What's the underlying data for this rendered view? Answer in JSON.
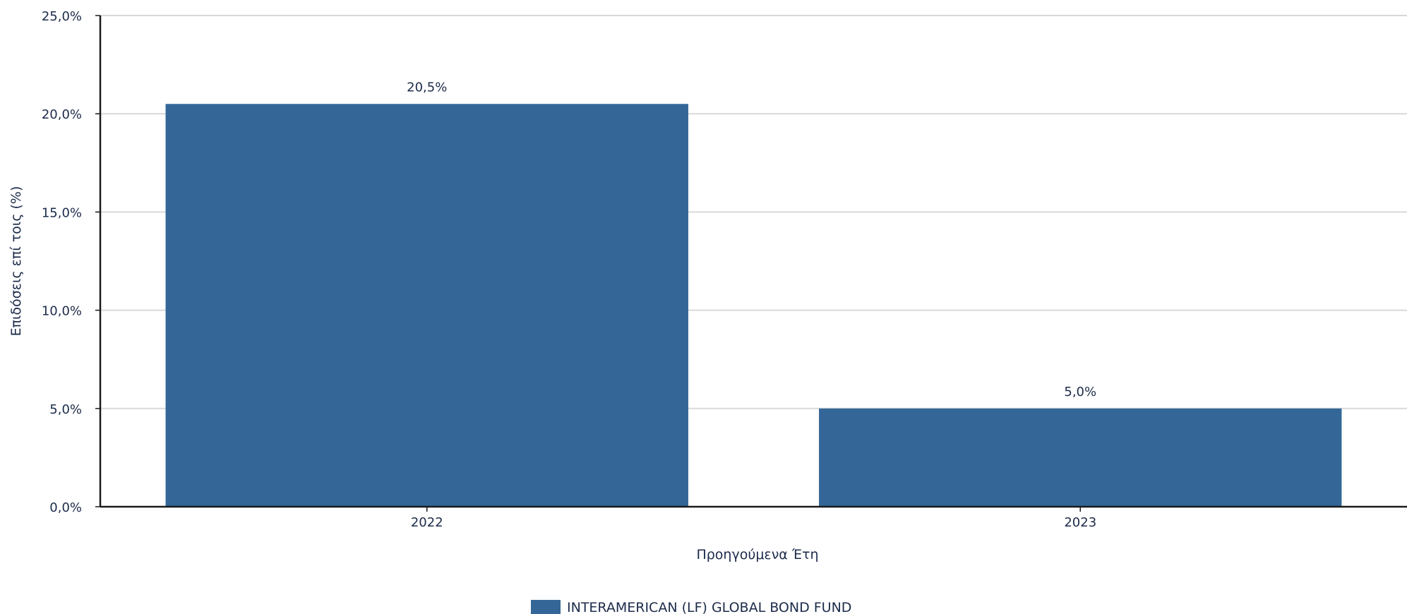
{
  "chart_data": {
    "type": "bar",
    "categories": [
      "2022",
      "2023"
    ],
    "series": [
      {
        "name": "INTERAMERICAN (LF) GLOBAL BOND FUND",
        "values": [
          20.5,
          5.0
        ],
        "color": "#346798"
      }
    ],
    "data_labels": [
      "20,5%",
      "5,0%"
    ],
    "xlabel": "Προηγούμενα Έτη",
    "ylabel": "Επιδόσεις επί τοις (%)",
    "ylim": [
      0,
      25
    ],
    "yticks": [
      0,
      5,
      10,
      15,
      20,
      25
    ],
    "ytick_labels": [
      "0,0%",
      "5,0%",
      "10,0%",
      "15,0%",
      "20,0%",
      "25,0%"
    ],
    "grid": true,
    "legend_position": "bottom"
  }
}
